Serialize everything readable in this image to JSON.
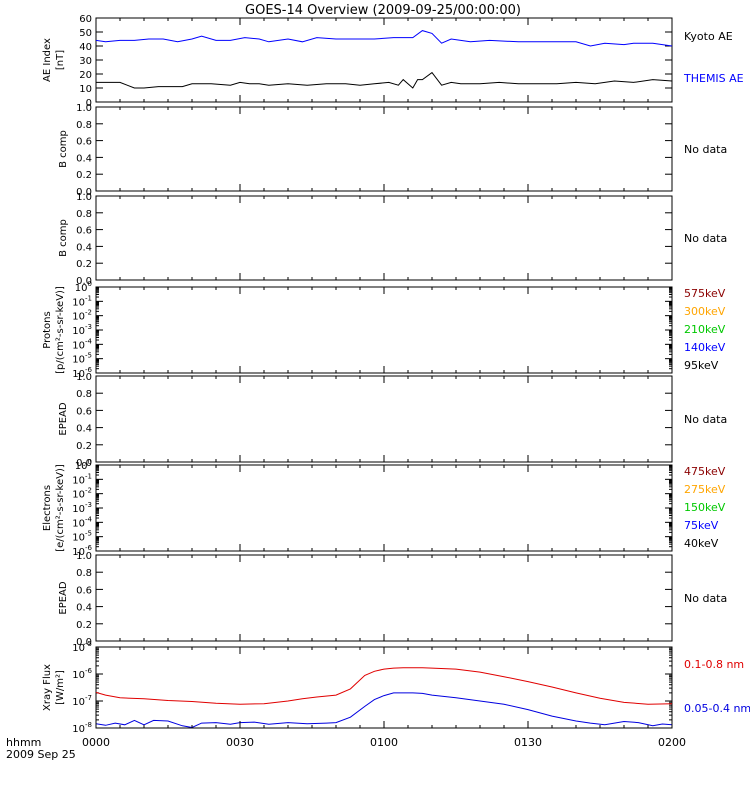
{
  "title": "GOES-14 Overview (2009-09-25/00:00:00)",
  "x_axis": {
    "ticks": [
      "0000",
      "0030",
      "0100",
      "0130",
      "0200"
    ],
    "corner_label_1": "hhmm",
    "corner_label_2": "2009 Sep 25"
  },
  "panels": [
    {
      "id": "ae",
      "ylabel_lines": [
        "AE Index",
        "[nT]"
      ],
      "scale": "linear",
      "ylim": [
        0,
        60
      ],
      "tick_labels": [
        "0",
        "10",
        "20",
        "30",
        "40",
        "50",
        "60"
      ],
      "right_labels": [
        {
          "text": "Kyoto AE",
          "color": "#000000"
        },
        {
          "text": "THEMIS AE",
          "color": "#0000ff"
        }
      ]
    },
    {
      "id": "b1",
      "ylabel_lines": [
        "B comp"
      ],
      "scale": "linear",
      "ylim": [
        0,
        1
      ],
      "tick_labels": [
        "0.0",
        "0.2",
        "0.4",
        "0.6",
        "0.8",
        "1.0"
      ],
      "right_labels": [
        {
          "text": "No data",
          "color": "#000000"
        }
      ]
    },
    {
      "id": "b2",
      "ylabel_lines": [
        "B comp"
      ],
      "scale": "linear",
      "ylim": [
        0,
        1
      ],
      "tick_labels": [
        "0.0",
        "0.2",
        "0.4",
        "0.6",
        "0.8",
        "1.0"
      ],
      "right_labels": [
        {
          "text": "No data",
          "color": "#000000"
        }
      ]
    },
    {
      "id": "protons",
      "ylabel_lines": [
        "Protons",
        "[p/(cm²-s-sr-keV)]"
      ],
      "scale": "log",
      "ylim_exp": [
        -6,
        0
      ],
      "right_labels": [
        {
          "text": "575keV",
          "color": "#8b0000"
        },
        {
          "text": "300keV",
          "color": "#ffa500"
        },
        {
          "text": "210keV",
          "color": "#00c800"
        },
        {
          "text": "140keV",
          "color": "#0000ff"
        },
        {
          "text": "95keV",
          "color": "#000000"
        }
      ]
    },
    {
      "id": "epead1",
      "ylabel_lines": [
        "EPEAD"
      ],
      "scale": "linear",
      "ylim": [
        0,
        1
      ],
      "tick_labels": [
        "0.0",
        "0.2",
        "0.4",
        "0.6",
        "0.8",
        "1.0"
      ],
      "right_labels": [
        {
          "text": "No data",
          "color": "#000000"
        }
      ]
    },
    {
      "id": "electrons",
      "ylabel_lines": [
        "Electrons",
        "[e/(cm²-s-sr-keV)]"
      ],
      "scale": "log",
      "ylim_exp": [
        -6,
        0
      ],
      "right_labels": [
        {
          "text": "475keV",
          "color": "#8b0000"
        },
        {
          "text": "275keV",
          "color": "#ffa500"
        },
        {
          "text": "150keV",
          "color": "#00c800"
        },
        {
          "text": "75keV",
          "color": "#0000ff"
        },
        {
          "text": "40keV",
          "color": "#000000"
        }
      ]
    },
    {
      "id": "epead2",
      "ylabel_lines": [
        "EPEAD"
      ],
      "scale": "linear",
      "ylim": [
        0,
        1
      ],
      "tick_labels": [
        "0.0",
        "0.2",
        "0.4",
        "0.6",
        "0.8",
        "1.0"
      ],
      "right_labels": [
        {
          "text": "No data",
          "color": "#000000"
        }
      ]
    },
    {
      "id": "xray",
      "ylabel_lines": [
        "Xray Flux",
        "[W/m²]"
      ],
      "scale": "log",
      "ylim_exp": [
        -8,
        -5
      ],
      "right_labels": [
        {
          "text": "0.1-0.8 nm",
          "color": "#e00000"
        },
        {
          "text": "0.05-0.4 nm",
          "color": "#0000e0"
        }
      ]
    }
  ],
  "chart_data": [
    {
      "type": "line",
      "title": "GOES-14 Overview (2009-09-25/00:00:00)",
      "xlabel": "hhmm",
      "xlim_minutes": [
        0,
        120
      ],
      "ylabel": "AE Index [nT]",
      "ylim": [
        0,
        60
      ],
      "series": [
        {
          "name": "THEMIS AE",
          "color": "#0000ff",
          "x": [
            0,
            2,
            5,
            8,
            11,
            14,
            17,
            20,
            22,
            25,
            28,
            31,
            34,
            36,
            40,
            43,
            46,
            50,
            54,
            58,
            62,
            64,
            66,
            68,
            70,
            72,
            74,
            78,
            82,
            88,
            92,
            96,
            100,
            103,
            106,
            110,
            112,
            116,
            120
          ],
          "y": [
            44,
            43,
            44,
            44,
            45,
            45,
            43,
            45,
            47,
            44,
            44,
            46,
            45,
            43,
            45,
            43,
            46,
            45,
            45,
            45,
            46,
            46,
            46,
            51,
            49,
            42,
            45,
            43,
            44,
            43,
            43,
            43,
            43,
            40,
            42,
            41,
            42,
            42,
            40
          ]
        },
        {
          "name": "Kyoto AE",
          "color": "#000000",
          "x": [
            0,
            2,
            5,
            8,
            10,
            13,
            16,
            18,
            20,
            24,
            28,
            30,
            32,
            34,
            36,
            40,
            44,
            48,
            52,
            55,
            58,
            61,
            63,
            64,
            66,
            67,
            68,
            70,
            72,
            74,
            76,
            80,
            84,
            88,
            92,
            96,
            100,
            104,
            108,
            112,
            116,
            120
          ],
          "y": [
            14,
            14,
            14,
            10,
            10,
            11,
            11,
            11,
            13,
            13,
            12,
            14,
            13,
            13,
            12,
            13,
            12,
            13,
            13,
            12,
            13,
            14,
            12,
            16,
            10,
            16,
            16,
            21,
            12,
            14,
            13,
            13,
            14,
            13,
            13,
            13,
            14,
            13,
            15,
            14,
            16,
            15
          ]
        }
      ]
    },
    {
      "type": "line",
      "ylabel": "B comp",
      "ylim": [
        0,
        1
      ],
      "series": []
    },
    {
      "type": "line",
      "ylabel": "B comp",
      "ylim": [
        0,
        1
      ],
      "series": []
    },
    {
      "type": "line",
      "ylabel": "Protons [p/(cm2-s-sr-keV)]",
      "ylim": [
        1e-06,
        1
      ],
      "yscale": "log",
      "series": []
    },
    {
      "type": "line",
      "ylabel": "EPEAD",
      "ylim": [
        0,
        1
      ],
      "series": []
    },
    {
      "type": "line",
      "ylabel": "Electrons [e/(cm2-s-sr-keV)]",
      "ylim": [
        1e-06,
        1
      ],
      "yscale": "log",
      "series": []
    },
    {
      "type": "line",
      "ylabel": "EPEAD",
      "ylim": [
        0,
        1
      ],
      "series": []
    },
    {
      "type": "line",
      "ylabel": "Xray Flux [W/m2]",
      "xlim_minutes": [
        0,
        120
      ],
      "ylim_exp": [
        -8,
        -5
      ],
      "yscale": "log",
      "series": [
        {
          "name": "0.1-0.8 nm",
          "color": "#e00000",
          "x": [
            0,
            2,
            5,
            10,
            15,
            20,
            25,
            30,
            35,
            40,
            43,
            46,
            50,
            53,
            56,
            58,
            60,
            62,
            64,
            66,
            68,
            70,
            75,
            80,
            85,
            90,
            95,
            100,
            105,
            110,
            115,
            120
          ],
          "y": [
            -6.68,
            -6.78,
            -6.88,
            -6.92,
            -6.98,
            -7.02,
            -7.08,
            -7.12,
            -7.1,
            -7.0,
            -6.92,
            -6.85,
            -6.78,
            -6.55,
            -6.05,
            -5.9,
            -5.82,
            -5.78,
            -5.77,
            -5.77,
            -5.77,
            -5.78,
            -5.82,
            -5.93,
            -6.1,
            -6.28,
            -6.48,
            -6.7,
            -6.9,
            -7.05,
            -7.12,
            -7.1
          ]
        },
        {
          "name": "0.05-0.4 nm",
          "color": "#0000e0",
          "x": [
            0,
            2,
            4,
            6,
            8,
            10,
            12,
            15,
            18,
            20,
            22,
            25,
            28,
            30,
            33,
            36,
            40,
            44,
            48,
            50,
            53,
            56,
            58,
            60,
            62,
            64,
            66,
            68,
            70,
            75,
            80,
            85,
            90,
            95,
            100,
            103,
            106,
            110,
            113,
            116,
            118,
            120
          ],
          "y": [
            -7.84,
            -7.9,
            -7.82,
            -7.88,
            -7.72,
            -7.88,
            -7.72,
            -7.74,
            -7.92,
            -7.98,
            -7.82,
            -7.8,
            -7.86,
            -7.8,
            -7.78,
            -7.86,
            -7.8,
            -7.84,
            -7.82,
            -7.8,
            -7.6,
            -7.2,
            -6.95,
            -6.8,
            -6.7,
            -6.7,
            -6.7,
            -6.72,
            -6.78,
            -6.88,
            -7.0,
            -7.12,
            -7.32,
            -7.56,
            -7.74,
            -7.82,
            -7.88,
            -7.76,
            -7.8,
            -7.92,
            -7.85,
            -7.88
          ]
        }
      ]
    }
  ]
}
